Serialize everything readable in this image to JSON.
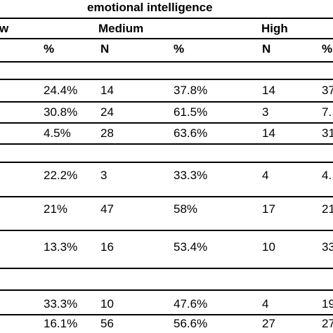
{
  "table": {
    "title": "emotional intelligence",
    "groups": {
      "low": "w",
      "medium": "Medium",
      "high": "High"
    },
    "subheaders": {
      "low_pct": "%",
      "medium_n": "N",
      "medium_pct": "%",
      "high_n": "N",
      "high_pct": "%"
    },
    "rows": [
      {
        "low_pct": "24.4%",
        "medium_n": "14",
        "medium_pct": "37.8%",
        "high_n": "14",
        "high_pct": "37"
      },
      {
        "low_pct": "30.8%",
        "medium_n": "24",
        "medium_pct": "61.5%",
        "high_n": "3",
        "high_pct": "7."
      },
      {
        "low_pct": "4.5%",
        "medium_n": "28",
        "medium_pct": "63.6%",
        "high_n": "14",
        "high_pct": "31"
      },
      {
        "low_pct": "22.2%",
        "medium_n": "3",
        "medium_pct": "33.3%",
        "high_n": "4",
        "high_pct": "4."
      },
      {
        "low_pct": "21%",
        "medium_n": "47",
        "medium_pct": "58%",
        "high_n": "17",
        "high_pct": "21"
      },
      {
        "low_pct": "13.3%",
        "medium_n": "16",
        "medium_pct": "53.4%",
        "high_n": "10",
        "high_pct": "33"
      },
      {
        "low_pct": "33.3%",
        "medium_n": "10",
        "medium_pct": "47.6%",
        "high_n": "4",
        "high_pct": "19"
      },
      {
        "low_pct": "16.1%",
        "medium_n": "56",
        "medium_pct": "56.6%",
        "high_n": "27",
        "high_pct": "27"
      }
    ]
  }
}
